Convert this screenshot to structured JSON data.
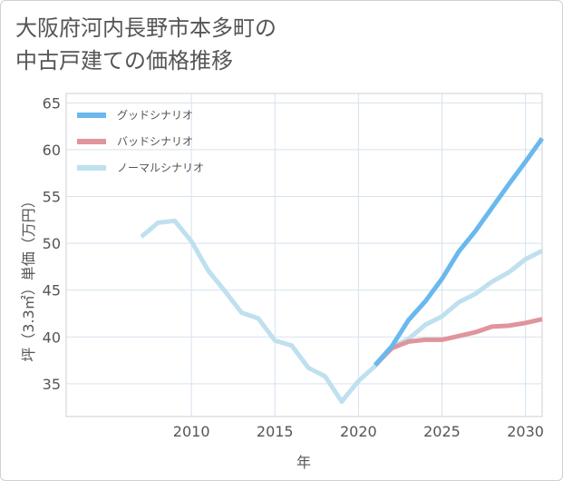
{
  "chart_data": {
    "type": "line",
    "title": "大阪府河内長野市本多町の\n中古戸建ての価格推移",
    "xlabel": "年",
    "ylabel": "坪（3.3㎡）単価（万円）",
    "xlim": [
      2002.5,
      2031
    ],
    "ylim": [
      31.5,
      66
    ],
    "x_ticks": [
      2010,
      2015,
      2020,
      2025,
      2030
    ],
    "y_ticks": [
      35,
      40,
      45,
      50,
      55,
      60,
      65
    ],
    "grid": true,
    "legend_position": "top-left",
    "series": [
      {
        "name": "グッドシナリオ",
        "color": "#6ab8ee",
        "x": [
          2021,
          2022,
          2023,
          2024,
          2025,
          2026,
          2027,
          2028,
          2029,
          2030,
          2031
        ],
        "y": [
          37.0,
          39.0,
          41.8,
          43.8,
          46.2,
          49.1,
          51.3,
          53.8,
          56.3,
          58.7,
          61.2
        ]
      },
      {
        "name": "バッドシナリオ",
        "color": "#e0949c",
        "x": [
          2021,
          2022,
          2023,
          2024,
          2025,
          2026,
          2027,
          2028,
          2029,
          2030,
          2031
        ],
        "y": [
          37.0,
          38.8,
          39.5,
          39.7,
          39.7,
          40.1,
          40.5,
          41.1,
          41.2,
          41.5,
          41.9
        ]
      },
      {
        "name": "ノーマルシナリオ",
        "color": "#bfe0ee",
        "x": [
          2007,
          2008,
          2009,
          2010,
          2011,
          2012,
          2013,
          2014,
          2015,
          2016,
          2017,
          2018,
          2019,
          2020,
          2021,
          2022,
          2023,
          2024,
          2025,
          2026,
          2027,
          2028,
          2029,
          2030,
          2031
        ],
        "y": [
          50.7,
          52.2,
          52.4,
          50.2,
          47.1,
          44.9,
          42.6,
          42.0,
          39.6,
          39.1,
          36.7,
          35.8,
          33.1,
          35.3,
          36.9,
          38.9,
          39.8,
          41.3,
          42.2,
          43.7,
          44.6,
          45.9,
          46.9,
          48.3,
          49.2
        ]
      }
    ]
  }
}
